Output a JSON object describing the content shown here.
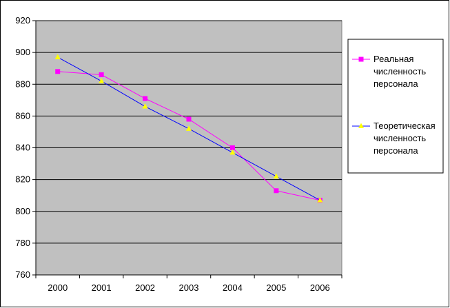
{
  "chart_data": {
    "type": "line",
    "x": [
      "2000",
      "2001",
      "2002",
      "2003",
      "2004",
      "2005",
      "2006"
    ],
    "ylim": [
      760,
      920
    ],
    "yticks": [
      760,
      780,
      800,
      820,
      840,
      860,
      880,
      900,
      920
    ],
    "grid": true,
    "legend_position": "right",
    "series": [
      {
        "name": "Реальная численность персонала",
        "legend_lines": [
          "Реальная",
          "численность",
          "персонала"
        ],
        "values": [
          888,
          886,
          871,
          858,
          840,
          813,
          807
        ],
        "color": "#ff00ff",
        "marker": "square"
      },
      {
        "name": "Теоретическая численность персонала",
        "legend_lines": [
          "Теоретическая",
          "численность",
          "персонала"
        ],
        "values": [
          897,
          882,
          866,
          852,
          837,
          822,
          807
        ],
        "color": "#0000ff",
        "marker_color": "#ffff00",
        "marker": "triangle"
      }
    ],
    "title": "",
    "xlabel": "",
    "ylabel": ""
  },
  "colors": {
    "plot_background": "#c0c0c0",
    "gridline": "#000000"
  }
}
